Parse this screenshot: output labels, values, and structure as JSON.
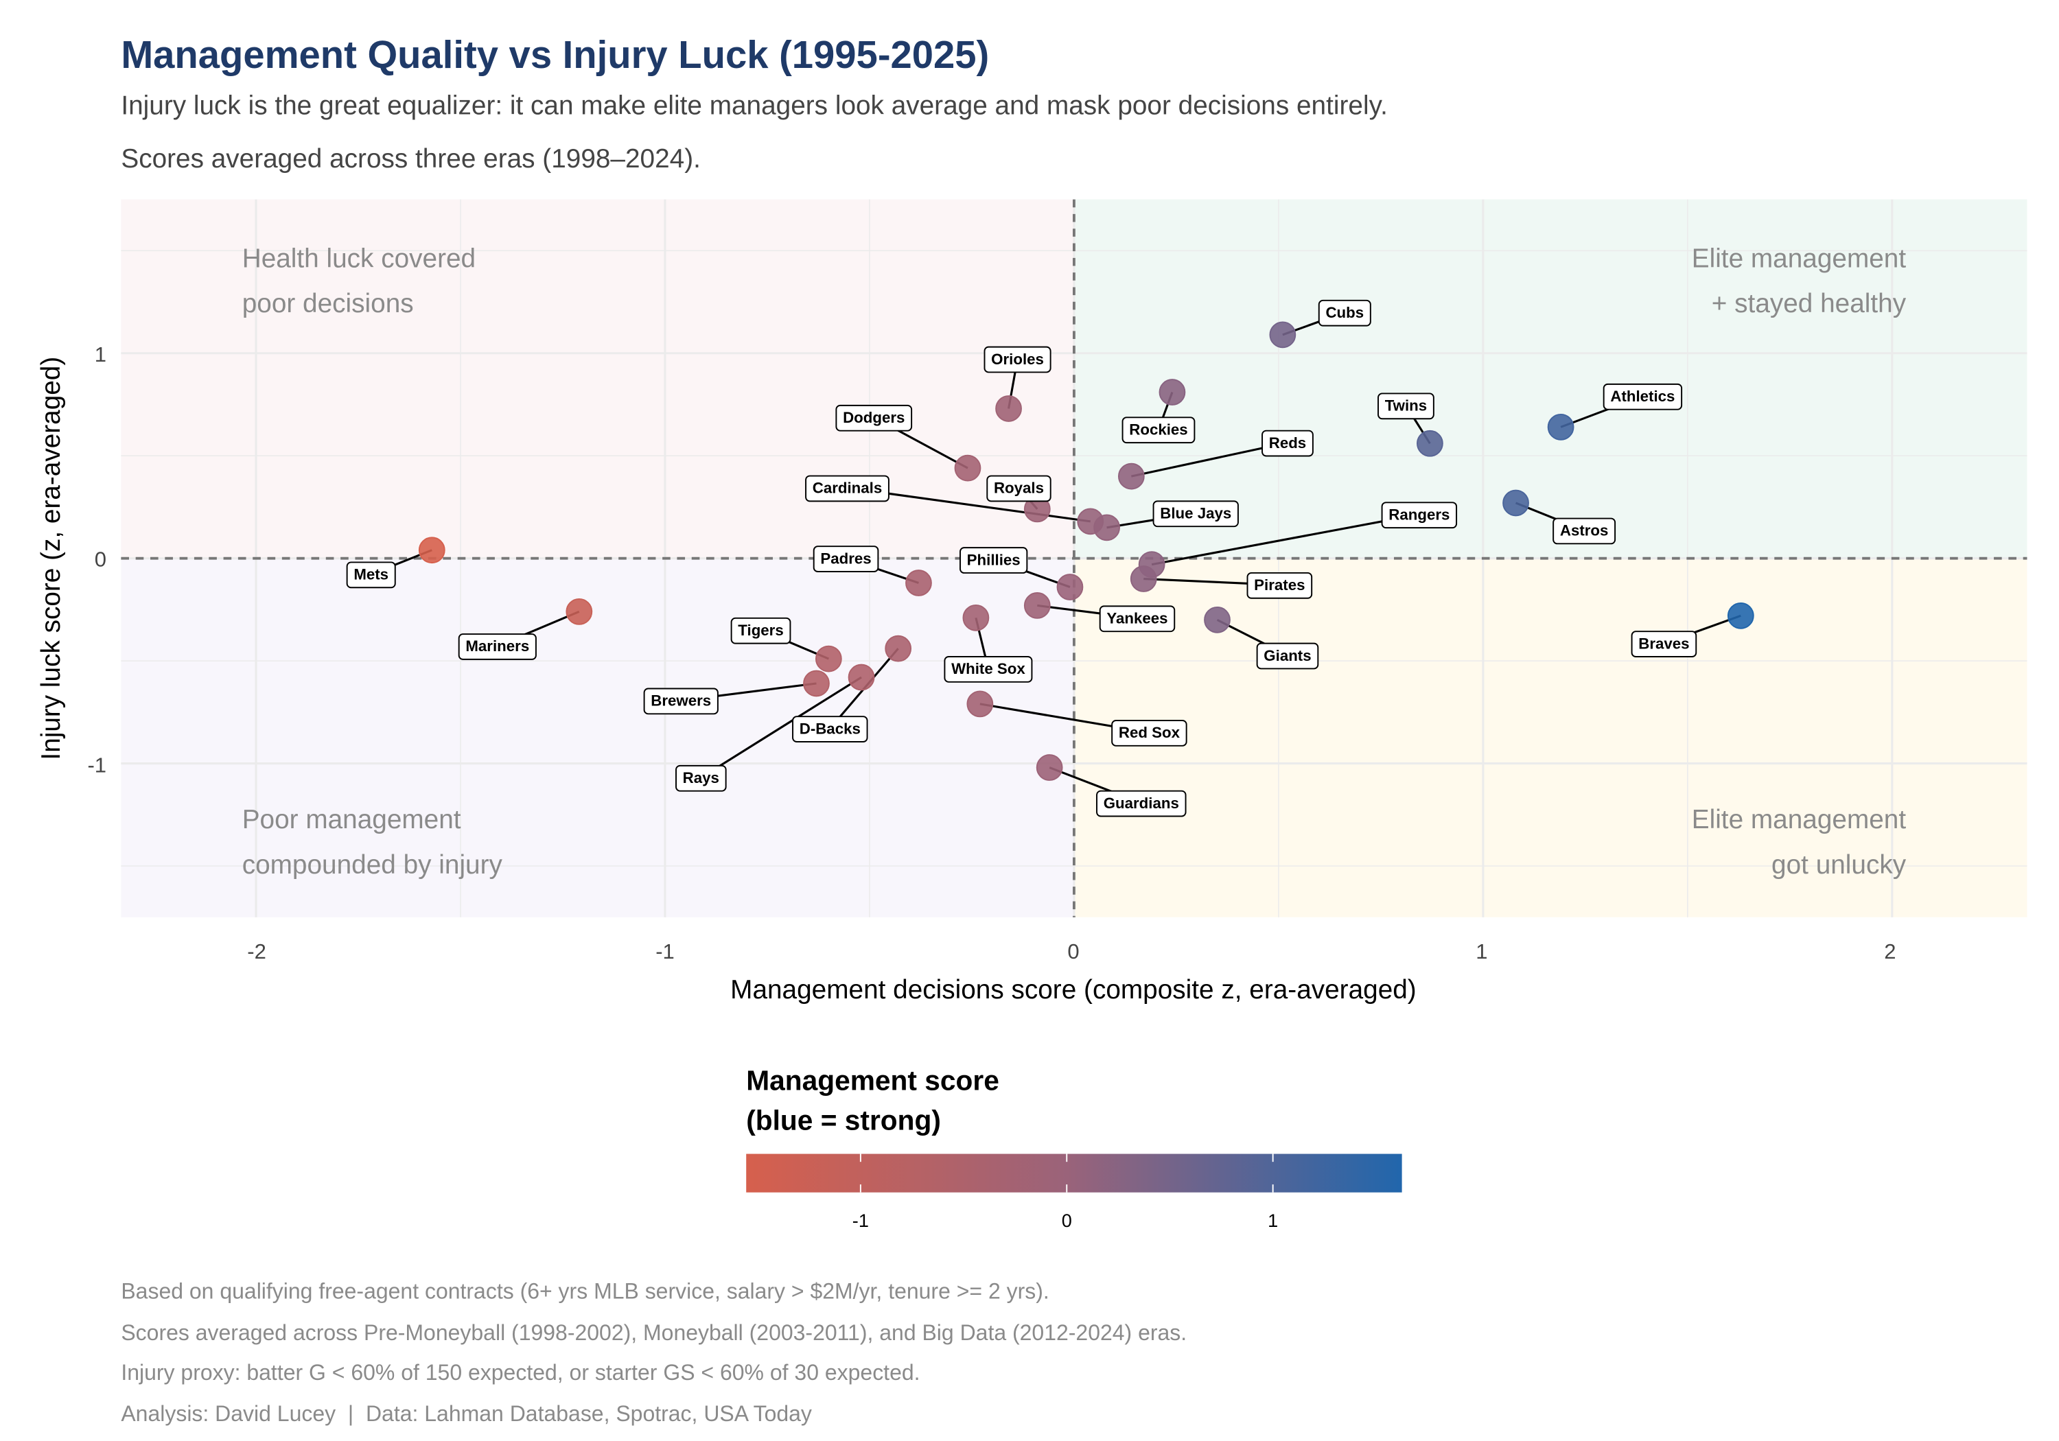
{
  "title": "Management Quality vs Injury Luck (1995-2025)",
  "subtitle_line1": "Injury luck is the great equalizer: it can make elite managers look average and mask poor decisions entirely.",
  "subtitle_line2": "Scores averaged across three eras (1998–2024).",
  "colors": {
    "title": "#1f3a68",
    "low": "#d6604d",
    "mid": "#9a637a",
    "high": "#2166ac",
    "q_top_left": "#fcf5f6",
    "q_top_right": "#eff8f4",
    "q_bottom_left": "#f8f6fc",
    "q_bottom_right": "#fffaed"
  },
  "chart_data": {
    "type": "scatter",
    "xlabel": "Management decisions score (composite z, era-averaged)",
    "ylabel": "Injury luck score (z, era-averaged)",
    "xlim": [
      -2.33,
      2.33
    ],
    "ylim": [
      -1.75,
      1.75
    ],
    "x_ticks": [
      "-2",
      "-1",
      "0",
      "1",
      "2"
    ],
    "y_ticks": [
      "-1",
      "0",
      "1"
    ],
    "grid": true,
    "reference_lines": {
      "x": 0,
      "y": 0,
      "style": "dashed"
    },
    "quadrant_labels": {
      "top_left": [
        "Health luck covered",
        "poor decisions"
      ],
      "top_right": [
        "Elite management",
        "+ stayed healthy"
      ],
      "bottom_left": [
        "Poor management",
        "compounded by injury"
      ],
      "bottom_right": [
        "Elite management",
        "got unlucky"
      ]
    },
    "points": [
      {
        "team": "Cubs",
        "x": 0.51,
        "y": 1.09
      },
      {
        "team": "Rockies",
        "x": 0.24,
        "y": 0.81
      },
      {
        "team": "Orioles",
        "x": -0.16,
        "y": 0.73
      },
      {
        "team": "Twins",
        "x": 0.87,
        "y": 0.56
      },
      {
        "team": "Athletics",
        "x": 1.19,
        "y": 0.64
      },
      {
        "team": "Dodgers",
        "x": -0.26,
        "y": 0.44
      },
      {
        "team": "Reds",
        "x": 0.14,
        "y": 0.4
      },
      {
        "team": "Royals",
        "x": -0.09,
        "y": 0.24
      },
      {
        "team": "Cardinals",
        "x": 0.04,
        "y": 0.18
      },
      {
        "team": "Blue Jays",
        "x": 0.08,
        "y": 0.15
      },
      {
        "team": "Astros",
        "x": 1.08,
        "y": 0.27
      },
      {
        "team": "Mets",
        "x": -1.57,
        "y": 0.04
      },
      {
        "team": "Rangers",
        "x": 0.19,
        "y": -0.03
      },
      {
        "team": "Pirates",
        "x": 0.17,
        "y": -0.1
      },
      {
        "team": "Padres",
        "x": -0.38,
        "y": -0.12
      },
      {
        "team": "Phillies",
        "x": -0.01,
        "y": -0.14
      },
      {
        "team": "Mariners",
        "x": -1.21,
        "y": -0.26
      },
      {
        "team": "Yankees",
        "x": -0.09,
        "y": -0.23
      },
      {
        "team": "White Sox",
        "x": -0.24,
        "y": -0.29
      },
      {
        "team": "Braves",
        "x": 1.63,
        "y": -0.28
      },
      {
        "team": "Giants",
        "x": 0.35,
        "y": -0.3
      },
      {
        "team": "Tigers",
        "x": -0.6,
        "y": -0.49
      },
      {
        "team": "Brewers",
        "x": -0.63,
        "y": -0.61
      },
      {
        "team": "D-Backs",
        "x": -0.43,
        "y": -0.44
      },
      {
        "team": "Rays",
        "x": -0.52,
        "y": -0.58
      },
      {
        "team": "Red Sox",
        "x": -0.23,
        "y": -0.71
      },
      {
        "team": "Guardians",
        "x": -0.06,
        "y": -1.02
      }
    ],
    "color_scale": {
      "title_line1": "Management score",
      "title_line2": "(blue = strong)",
      "range": [
        -1.57,
        1.63
      ],
      "ticks": [
        "-1",
        "0",
        "1"
      ]
    }
  },
  "caption": [
    "Based on qualifying free-agent contracts (6+ yrs MLB service, salary > $2M/yr, tenure >= 2 yrs).",
    "Scores averaged across Pre-Moneyball (1998-2002), Moneyball (2003-2011), and Big Data (2012-2024) eras.",
    "Injury proxy: batter G < 60% of 150 expected, or starter GS < 60% of 30 expected.",
    "Analysis: David Lucey  |  Data: Lahman Database, Spotrac, USA Today"
  ]
}
